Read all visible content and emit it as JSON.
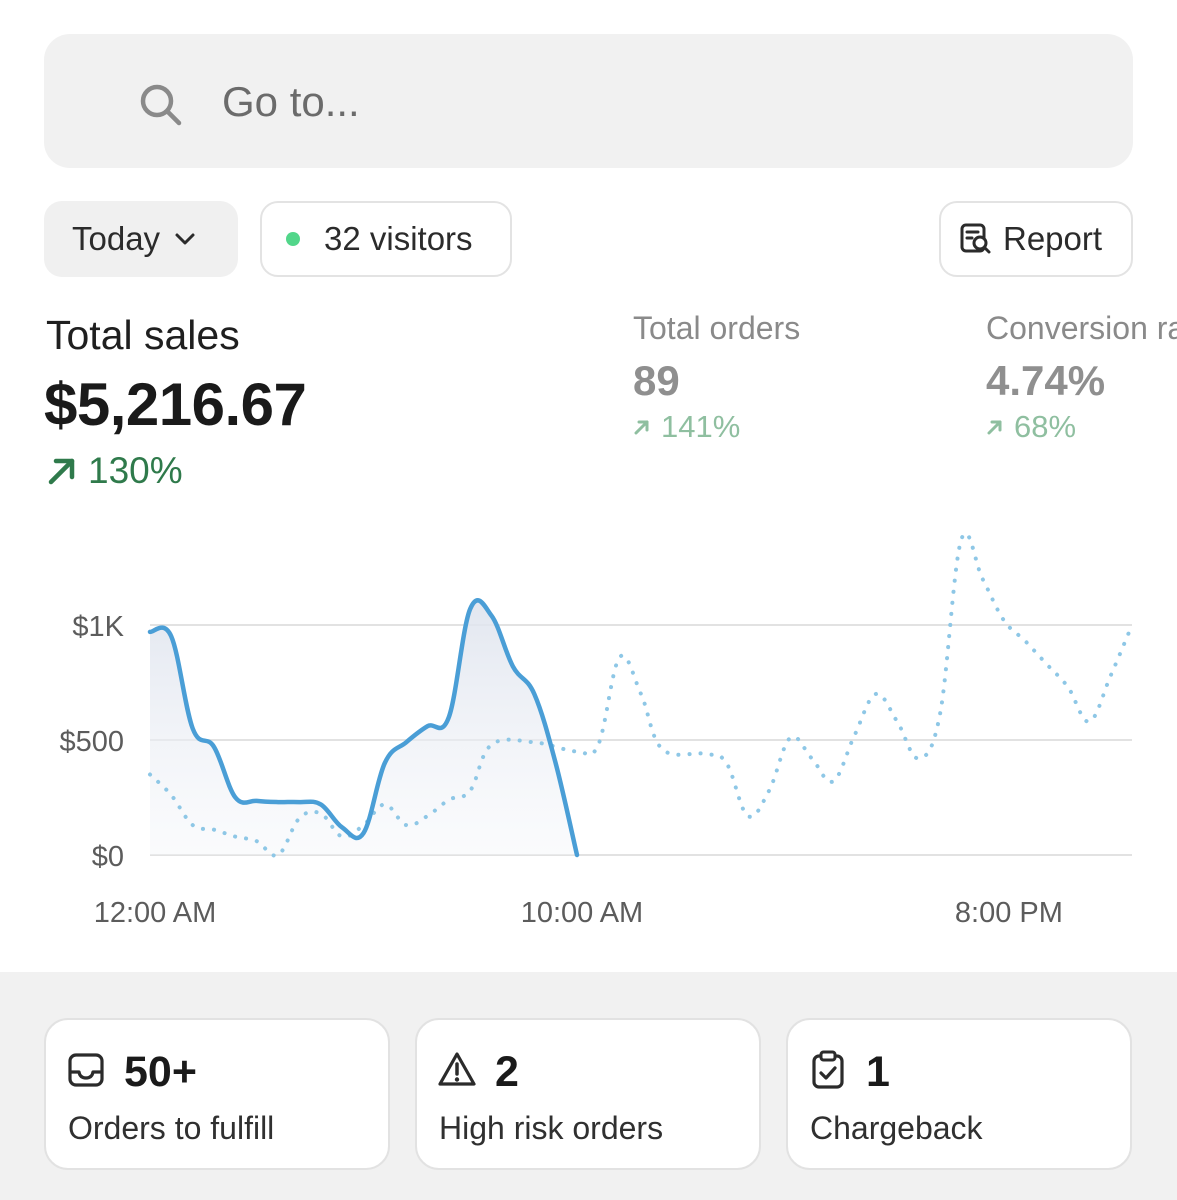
{
  "search": {
    "placeholder": "Go to..."
  },
  "filters": {
    "date_label": "Today",
    "visitors_label": "32 visitors",
    "report_label": "Report"
  },
  "metrics": {
    "total_sales": {
      "label": "Total sales",
      "value": "$5,216.67",
      "change": "130%"
    },
    "total_orders": {
      "label": "Total orders",
      "value": "89",
      "change": "141%"
    },
    "conversion": {
      "label": "Conversion rate",
      "value": "4.74%",
      "change": "68%"
    }
  },
  "colors": {
    "accent_green": "#2f7a4b",
    "muted_green": "#8fbfa0",
    "line_today": "#4a9ed6",
    "line_previous": "#8ec7e6",
    "visitor_dot": "#52d68a"
  },
  "chart_data": {
    "type": "line",
    "yticks": [
      "$0",
      "$500",
      "$1K"
    ],
    "ylim": [
      0,
      1000
    ],
    "xticks": [
      "12:00 AM",
      "10:00 AM",
      "8:00 PM"
    ],
    "series": [
      {
        "style": "solid",
        "points": [
          [
            0,
            970
          ],
          [
            0.5,
            950
          ],
          [
            1,
            550
          ],
          [
            1.5,
            470
          ],
          [
            2,
            250
          ],
          [
            2.5,
            235
          ],
          [
            3,
            230
          ],
          [
            3.5,
            230
          ],
          [
            4,
            220
          ],
          [
            4.5,
            120
          ],
          [
            5,
            95
          ],
          [
            5.5,
            400
          ],
          [
            6,
            490
          ],
          [
            6.5,
            560
          ],
          [
            7,
            600
          ],
          [
            7.5,
            1070
          ],
          [
            8,
            1040
          ],
          [
            8.5,
            820
          ],
          [
            9,
            700
          ],
          [
            9.5,
            400
          ],
          [
            10,
            0
          ]
        ]
      },
      {
        "style": "dotted",
        "points": [
          [
            0,
            350
          ],
          [
            0.5,
            260
          ],
          [
            1,
            130
          ],
          [
            1.5,
            110
          ],
          [
            2,
            80
          ],
          [
            2.5,
            60
          ],
          [
            3,
            0
          ],
          [
            3.5,
            160
          ],
          [
            4,
            180
          ],
          [
            4.5,
            80
          ],
          [
            5,
            130
          ],
          [
            5.5,
            220
          ],
          [
            6,
            130
          ],
          [
            6.5,
            170
          ],
          [
            7,
            240
          ],
          [
            7.5,
            280
          ],
          [
            8,
            480
          ],
          [
            9,
            490
          ],
          [
            10,
            450
          ],
          [
            10.5,
            480
          ],
          [
            11,
            860
          ],
          [
            11.5,
            700
          ],
          [
            12,
            460
          ],
          [
            13,
            440
          ],
          [
            13.5,
            400
          ],
          [
            14,
            170
          ],
          [
            14.5,
            280
          ],
          [
            15,
            510
          ],
          [
            15.5,
            420
          ],
          [
            16,
            320
          ],
          [
            16.5,
            520
          ],
          [
            17,
            700
          ],
          [
            17.5,
            580
          ],
          [
            18,
            420
          ],
          [
            18.5,
            610
          ],
          [
            19,
            1370
          ],
          [
            19.5,
            1200
          ],
          [
            20,
            1020
          ],
          [
            20.5,
            930
          ],
          [
            21,
            830
          ],
          [
            21.5,
            730
          ],
          [
            22,
            580
          ],
          [
            22.5,
            780
          ],
          [
            23,
            1000
          ]
        ]
      }
    ]
  },
  "cards": [
    {
      "icon": "inbox-icon",
      "value": "50+",
      "label": "Orders to fulfill"
    },
    {
      "icon": "warning-triangle-icon",
      "value": "2",
      "label": "High risk orders"
    },
    {
      "icon": "clipboard-check-icon",
      "value": "1",
      "label": "Chargeback"
    }
  ]
}
